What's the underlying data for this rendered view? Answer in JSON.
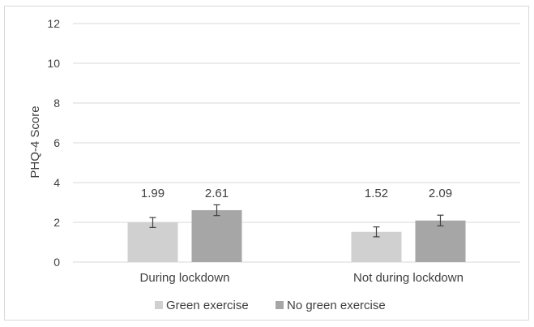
{
  "chart_data": {
    "type": "bar",
    "categories": [
      "During lockdown",
      "Not during lockdown"
    ],
    "series": [
      {
        "name": "Green exercise",
        "values": [
          1.99,
          1.52
        ],
        "errors": [
          0.25,
          0.25
        ],
        "color": "#d0d0d0"
      },
      {
        "name": "No green exercise",
        "values": [
          2.61,
          2.09
        ],
        "errors": [
          0.27,
          0.27
        ],
        "color": "#a6a6a6"
      }
    ],
    "data_labels": [
      "1.99",
      "2.61",
      "1.52",
      "2.09"
    ],
    "ylabel": "PHQ-4 Score",
    "xlabel": "",
    "ylim": [
      0,
      12
    ],
    "yticks": [
      0,
      2,
      4,
      6,
      8,
      10,
      12
    ],
    "grid": true,
    "legend_position": "bottom",
    "error_bar_color": "#404040",
    "grid_color": "#d9d9d9"
  }
}
